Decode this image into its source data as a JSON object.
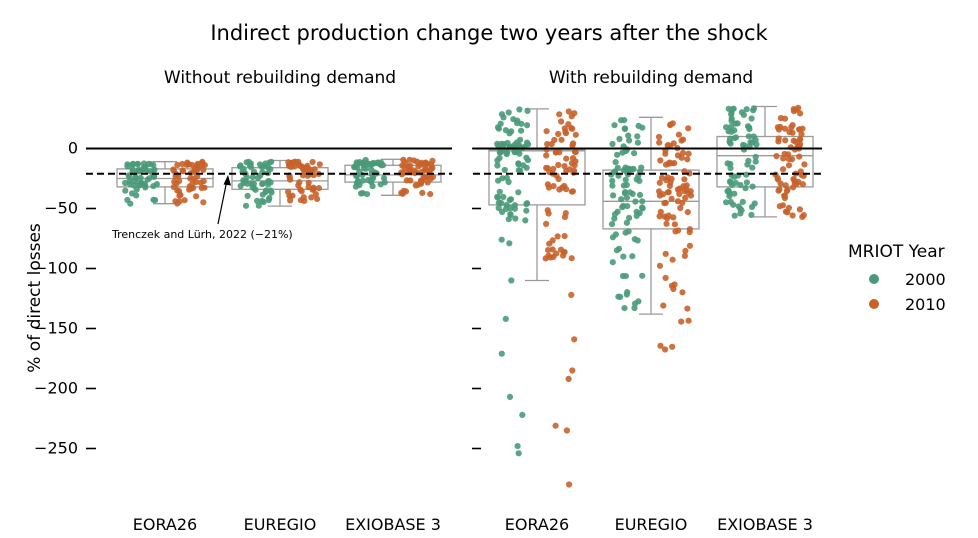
{
  "chart_data": {
    "type": "box+strip",
    "title": "Indirect production change two years after the shock",
    "ylabel": "% of direct losses",
    "yticks": [
      0,
      -50,
      -100,
      -150,
      -200,
      -250
    ],
    "ytick_labels": [
      "0",
      "−50",
      "−100",
      "−150",
      "−200",
      "−250"
    ],
    "ylim": [
      -290,
      38
    ],
    "reference_lines": [
      {
        "name": "zero",
        "value": 0,
        "style": "solid"
      },
      {
        "name": "literature",
        "value": -21,
        "style": "dashed"
      }
    ],
    "annotation": {
      "text": "Trenczek and Lürh, 2022 (−21%)",
      "target_value": -21
    },
    "legend": {
      "title": "MRIOT Year",
      "placement": "right",
      "entries": [
        {
          "label": "2000",
          "color": "#4a9a7a"
        },
        {
          "label": "2010",
          "color": "#c8622a"
        }
      ]
    },
    "categories": [
      "EORA26",
      "EUREGIO",
      "EXIOBASE 3"
    ],
    "panels": [
      {
        "title": "Without rebuilding demand",
        "boxes": [
          {
            "category": "EORA26",
            "q1": -32,
            "median": -25,
            "q3": -17,
            "whisker_low": -46,
            "whisker_high": -11
          },
          {
            "category": "EUREGIO",
            "q1": -34,
            "median": -27,
            "q3": -16,
            "whisker_low": -48,
            "whisker_high": -10
          },
          {
            "category": "EXIOBASE 3",
            "q1": -28,
            "median": -22,
            "q3": -14,
            "whisker_low": -39,
            "whisker_high": -9
          }
        ],
        "series": [
          {
            "name": "2000",
            "category": "EORA26",
            "count": 55,
            "min": -46,
            "max": -11,
            "q1": -32,
            "median": -25,
            "q3": -17,
            "outliers": []
          },
          {
            "name": "2010",
            "category": "EORA26",
            "count": 55,
            "min": -46,
            "max": -11,
            "q1": -32,
            "median": -25,
            "q3": -17,
            "outliers": []
          },
          {
            "name": "2000",
            "category": "EUREGIO",
            "count": 55,
            "min": -48,
            "max": -11,
            "q1": -34,
            "median": -27,
            "q3": -16,
            "outliers": []
          },
          {
            "name": "2010",
            "category": "EUREGIO",
            "count": 55,
            "min": -46,
            "max": -10,
            "q1": -33,
            "median": -26,
            "q3": -16,
            "outliers": []
          },
          {
            "name": "2000",
            "category": "EXIOBASE 3",
            "count": 55,
            "min": -39,
            "max": -9,
            "q1": -28,
            "median": -22,
            "q3": -14,
            "outliers": []
          },
          {
            "name": "2010",
            "category": "EXIOBASE 3",
            "count": 55,
            "min": -39,
            "max": -9,
            "q1": -28,
            "median": -22,
            "q3": -14,
            "outliers": []
          }
        ]
      },
      {
        "title": "With rebuilding demand",
        "boxes": [
          {
            "category": "EORA26",
            "q1": -47,
            "median": -2,
            "q3": -1,
            "whisker_low": -110,
            "whisker_high": 33
          },
          {
            "category": "EUREGIO",
            "q1": -67,
            "median": -44,
            "q3": -18,
            "whisker_low": -138,
            "whisker_high": 26
          },
          {
            "category": "EXIOBASE 3",
            "q1": -32,
            "median": -6,
            "q3": 10,
            "whisker_low": -57,
            "whisker_high": 35
          }
        ],
        "series": [
          {
            "name": "2000",
            "category": "EORA26",
            "count": 85,
            "min": -60,
            "max": 33,
            "q1": -40,
            "median": -5,
            "q3": 5,
            "outliers": [
              -76,
              -79,
              -110,
              -142,
              -171,
              -207,
              -222,
              -248,
              -254
            ]
          },
          {
            "name": "2010",
            "category": "EORA26",
            "count": 75,
            "min": -92,
            "max": 33,
            "q1": -45,
            "median": -20,
            "q3": 5,
            "outliers": [
              -122,
              -159,
              -185,
              -192,
              -231,
              -235,
              -280
            ]
          },
          {
            "name": "2000",
            "category": "EUREGIO",
            "count": 90,
            "min": -133,
            "max": 26,
            "q1": -65,
            "median": -40,
            "q3": -15,
            "outliers": []
          },
          {
            "name": "2010",
            "category": "EUREGIO",
            "count": 90,
            "min": -172,
            "max": 23,
            "q1": -70,
            "median": -45,
            "q3": -20,
            "outliers": []
          },
          {
            "name": "2000",
            "category": "EXIOBASE 3",
            "count": 75,
            "min": -57,
            "max": 35,
            "q1": -30,
            "median": -5,
            "q3": 12,
            "outliers": []
          },
          {
            "name": "2010",
            "category": "EXIOBASE 3",
            "count": 75,
            "min": -57,
            "max": 35,
            "q1": -32,
            "median": -8,
            "q3": 10,
            "outliers": []
          }
        ]
      }
    ]
  }
}
